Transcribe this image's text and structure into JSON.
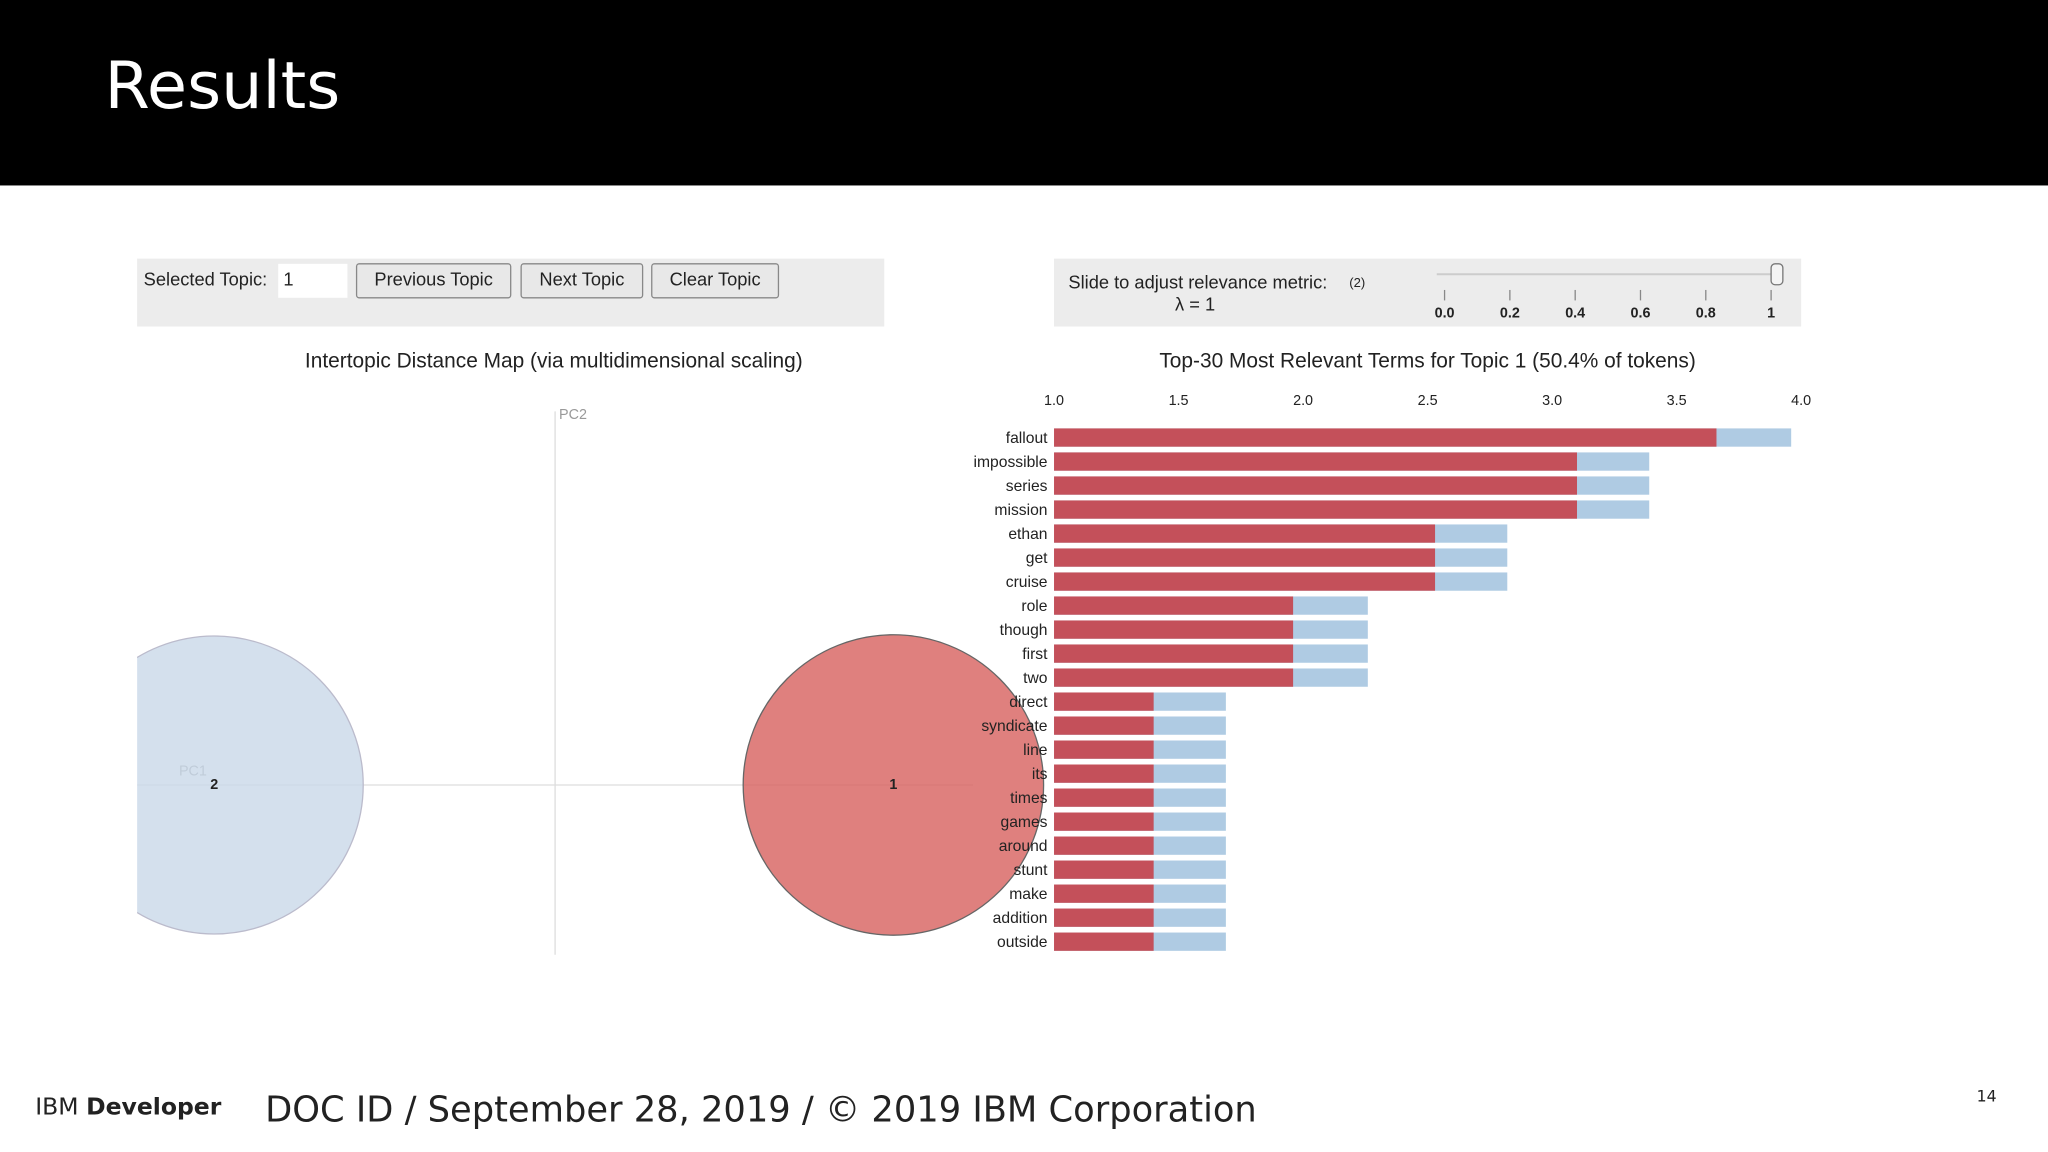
{
  "header": {
    "title": "Results"
  },
  "controls": {
    "selected_topic_label": "Selected Topic:",
    "selected_topic": "1",
    "buttons": [
      "Previous Topic",
      "Next Topic",
      "Clear Topic"
    ]
  },
  "slider": {
    "label": "Slide to adjust relevance metric:",
    "note": "(2)",
    "value_label": "λ = 1",
    "value": 1,
    "lim": [
      0,
      1
    ],
    "ticks": [
      {
        "value": 0,
        "label": "0.0"
      },
      0.2,
      0.4,
      0.6,
      0.8,
      1
    ]
  },
  "chart_data": [
    {
      "type": "scatter",
      "title": "Intertopic Distance Map (via multidimensional scaling)",
      "xlabel": "PC1",
      "ylabel": "PC2",
      "categories": [
        "1",
        "2"
      ],
      "x": [
        0.259,
        -0.261
      ],
      "values": [
        0,
        0
      ],
      "sizes": [
        50.4,
        49.6
      ],
      "colors": [
        "#d7605e",
        "#c9d8e8"
      ],
      "xlim": [
        -0.32,
        0.32
      ],
      "ylim": [
        -0.13,
        0.29
      ]
    },
    {
      "type": "bar",
      "orientation": "horizontal",
      "title": "Top-30 Most Relevant Terms for Topic 1 (50.4% of tokens)",
      "categories": [
        "fallout",
        "impossible",
        "series",
        "mission",
        "ethan",
        "get",
        "cruise",
        "role",
        "though",
        "first",
        "two",
        "direct",
        "syndicate",
        "line",
        "its",
        "times",
        "games",
        "around",
        "stunt",
        "make",
        "addition",
        "outside"
      ],
      "series": [
        {
          "color": "#afcbe3",
          "values": [
            3.96,
            3.39,
            3.39,
            3.39,
            2.82,
            2.82,
            2.82,
            2.26,
            2.26,
            2.26,
            2.26,
            1.69,
            1.69,
            1.69,
            1.69,
            1.69,
            1.69,
            1.69,
            1.69,
            1.69,
            1.69,
            1.69
          ]
        },
        {
          "color": "#c4505a",
          "values": [
            3.66,
            3.1,
            3.1,
            3.1,
            2.53,
            2.53,
            2.53,
            1.96,
            1.96,
            1.96,
            1.96,
            1.4,
            1.4,
            1.4,
            1.4,
            1.4,
            1.4,
            1.4,
            1.4,
            1.4,
            1.4,
            1.4
          ]
        }
      ],
      "xlim": [
        1,
        4
      ],
      "xticks": [
        {
          "value": 1,
          "label": "1.0"
        },
        1.5,
        {
          "value": 2,
          "label": "2.0"
        },
        2.5,
        {
          "value": 3,
          "label": "3.0"
        },
        3.5,
        {
          "value": 4,
          "label": "4.0"
        }
      ]
    }
  ],
  "footer": {
    "brand": "IBM",
    "brand_bold": "Developer",
    "doc": "DOC ID / September 28, 2019 / © 2019 IBM Corporation",
    "page": "14"
  }
}
